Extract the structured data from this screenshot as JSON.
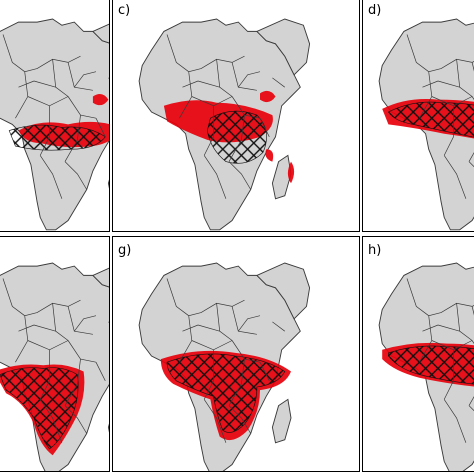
{
  "figure": {
    "panels": [
      {
        "id": "b",
        "label": "",
        "row": 0,
        "col": 0,
        "hatch": "central-east-large",
        "red": "central-east"
      },
      {
        "id": "c",
        "label": "c)",
        "row": 0,
        "col": 1,
        "hatch": "central-large",
        "red": "west-central"
      },
      {
        "id": "d",
        "label": "d)",
        "row": 0,
        "col": 2,
        "hatch": "west-coast",
        "red": "west-coast"
      },
      {
        "id": "f",
        "label": "",
        "row": 1,
        "col": 0,
        "hatch": "central-east-south",
        "red": "central-east-south"
      },
      {
        "id": "g",
        "label": "g)",
        "row": 1,
        "col": 1,
        "hatch": "belt-south",
        "red": "belt-south"
      },
      {
        "id": "h",
        "label": "h)",
        "row": 1,
        "col": 2,
        "hatch": "west-coast-belt",
        "red": "west-coast-belt"
      }
    ]
  },
  "colors": {
    "land": "#d3d3d3",
    "ocean": "#ffffff",
    "border": "#3a3a3a",
    "suitability_red": "#e8000b",
    "suitability_darkred": "#8b0000",
    "hatch": "#111111",
    "frame": "#000000"
  }
}
